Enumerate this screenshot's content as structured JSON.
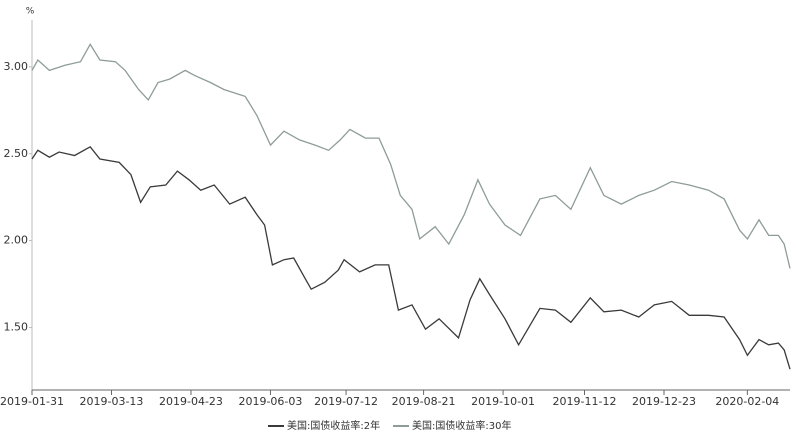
{
  "chart_data": {
    "type": "line",
    "y_label": "%",
    "xlim": [
      "2019-01-31",
      "2020-02-26"
    ],
    "xticks": [
      "2019-01-31",
      "2019-03-13",
      "2019-04-23",
      "2019-06-03",
      "2019-07-12",
      "2019-08-21",
      "2019-10-01",
      "2019-11-12",
      "2019-12-23",
      "2020-02-04"
    ],
    "ylim": [
      1.14,
      3.27
    ],
    "yticks": [
      {
        "value": 1.5,
        "label": "1.50"
      },
      {
        "value": 2,
        "label": "2.00"
      },
      {
        "value": 2.5,
        "label": "2.50"
      },
      {
        "value": 3,
        "label": "3.00"
      }
    ],
    "grid": false,
    "legend": "bottom",
    "series": [
      {
        "name": "美国:国债收益率:2年",
        "color": "#3a3a3a",
        "x": [
          "2019-01-31",
          "2019-02-03",
          "2019-02-09",
          "2019-02-14",
          "2019-02-22",
          "2019-03-02",
          "2019-03-07",
          "2019-03-17",
          "2019-03-23",
          "2019-03-28",
          "2019-04-02",
          "2019-04-10",
          "2019-04-16",
          "2019-04-22",
          "2019-04-28",
          "2019-05-05",
          "2019-05-13",
          "2019-05-21",
          "2019-05-27",
          "2019-05-31",
          "2019-06-04",
          "2019-06-10",
          "2019-06-15",
          "2019-06-21",
          "2019-06-24",
          "2019-07-01",
          "2019-07-08",
          "2019-07-11",
          "2019-07-19",
          "2019-07-27",
          "2019-08-03",
          "2019-08-08",
          "2019-08-15",
          "2019-08-22",
          "2019-08-29",
          "2019-09-08",
          "2019-09-14",
          "2019-09-19",
          "2019-09-24",
          "2019-10-02",
          "2019-10-09",
          "2019-10-20",
          "2019-10-28",
          "2019-11-05",
          "2019-11-15",
          "2019-11-22",
          "2019-12-01",
          "2019-12-10",
          "2019-12-18",
          "2019-12-27",
          "2020-01-05",
          "2020-01-15",
          "2020-01-23",
          "2020-01-31",
          "2020-02-04",
          "2020-02-10",
          "2020-02-15",
          "2020-02-20",
          "2020-02-23",
          "2020-02-26"
        ],
        "values": [
          2.47,
          2.52,
          2.48,
          2.51,
          2.49,
          2.54,
          2.47,
          2.45,
          2.38,
          2.22,
          2.31,
          2.32,
          2.4,
          2.35,
          2.29,
          2.32,
          2.21,
          2.25,
          2.15,
          2.09,
          1.86,
          1.89,
          1.9,
          1.78,
          1.72,
          1.76,
          1.83,
          1.89,
          1.82,
          1.86,
          1.86,
          1.6,
          1.63,
          1.49,
          1.55,
          1.44,
          1.66,
          1.78,
          1.69,
          1.55,
          1.4,
          1.61,
          1.6,
          1.53,
          1.67,
          1.59,
          1.6,
          1.56,
          1.63,
          1.65,
          1.57,
          1.57,
          1.56,
          1.43,
          1.34,
          1.43,
          1.4,
          1.41,
          1.37,
          1.26
        ]
      },
      {
        "name": "美国:国债收益率:30年",
        "color": "#8e9c99",
        "x": [
          "2019-01-31",
          "2019-02-03",
          "2019-02-09",
          "2019-02-17",
          "2019-02-25",
          "2019-03-02",
          "2019-03-07",
          "2019-03-15",
          "2019-03-20",
          "2019-03-27",
          "2019-04-01",
          "2019-04-06",
          "2019-04-12",
          "2019-04-20",
          "2019-04-25",
          "2019-05-03",
          "2019-05-10",
          "2019-05-21",
          "2019-05-27",
          "2019-06-03",
          "2019-06-10",
          "2019-06-18",
          "2019-06-26",
          "2019-07-03",
          "2019-07-09",
          "2019-07-14",
          "2019-07-22",
          "2019-07-29",
          "2019-08-04",
          "2019-08-09",
          "2019-08-15",
          "2019-08-19",
          "2019-08-27",
          "2019-09-03",
          "2019-09-11",
          "2019-09-18",
          "2019-09-24",
          "2019-10-02",
          "2019-10-10",
          "2019-10-20",
          "2019-10-28",
          "2019-11-05",
          "2019-11-15",
          "2019-11-22",
          "2019-12-01",
          "2019-12-10",
          "2019-12-18",
          "2019-12-27",
          "2020-01-05",
          "2020-01-15",
          "2020-01-23",
          "2020-01-31",
          "2020-02-04",
          "2020-02-10",
          "2020-02-15",
          "2020-02-20",
          "2020-02-23",
          "2020-02-26"
        ],
        "values": [
          2.98,
          3.04,
          2.98,
          3.01,
          3.03,
          3.13,
          3.04,
          3.03,
          2.98,
          2.87,
          2.81,
          2.91,
          2.93,
          2.98,
          2.95,
          2.91,
          2.87,
          2.83,
          2.72,
          2.55,
          2.63,
          2.58,
          2.55,
          2.52,
          2.58,
          2.64,
          2.59,
          2.59,
          2.44,
          2.26,
          2.18,
          2.01,
          2.08,
          1.98,
          2.15,
          2.35,
          2.21,
          2.09,
          2.03,
          2.24,
          2.26,
          2.18,
          2.42,
          2.26,
          2.21,
          2.26,
          2.29,
          2.34,
          2.32,
          2.29,
          2.24,
          2.06,
          2.01,
          2.12,
          2.03,
          2.03,
          1.98,
          1.84
        ]
      }
    ]
  }
}
